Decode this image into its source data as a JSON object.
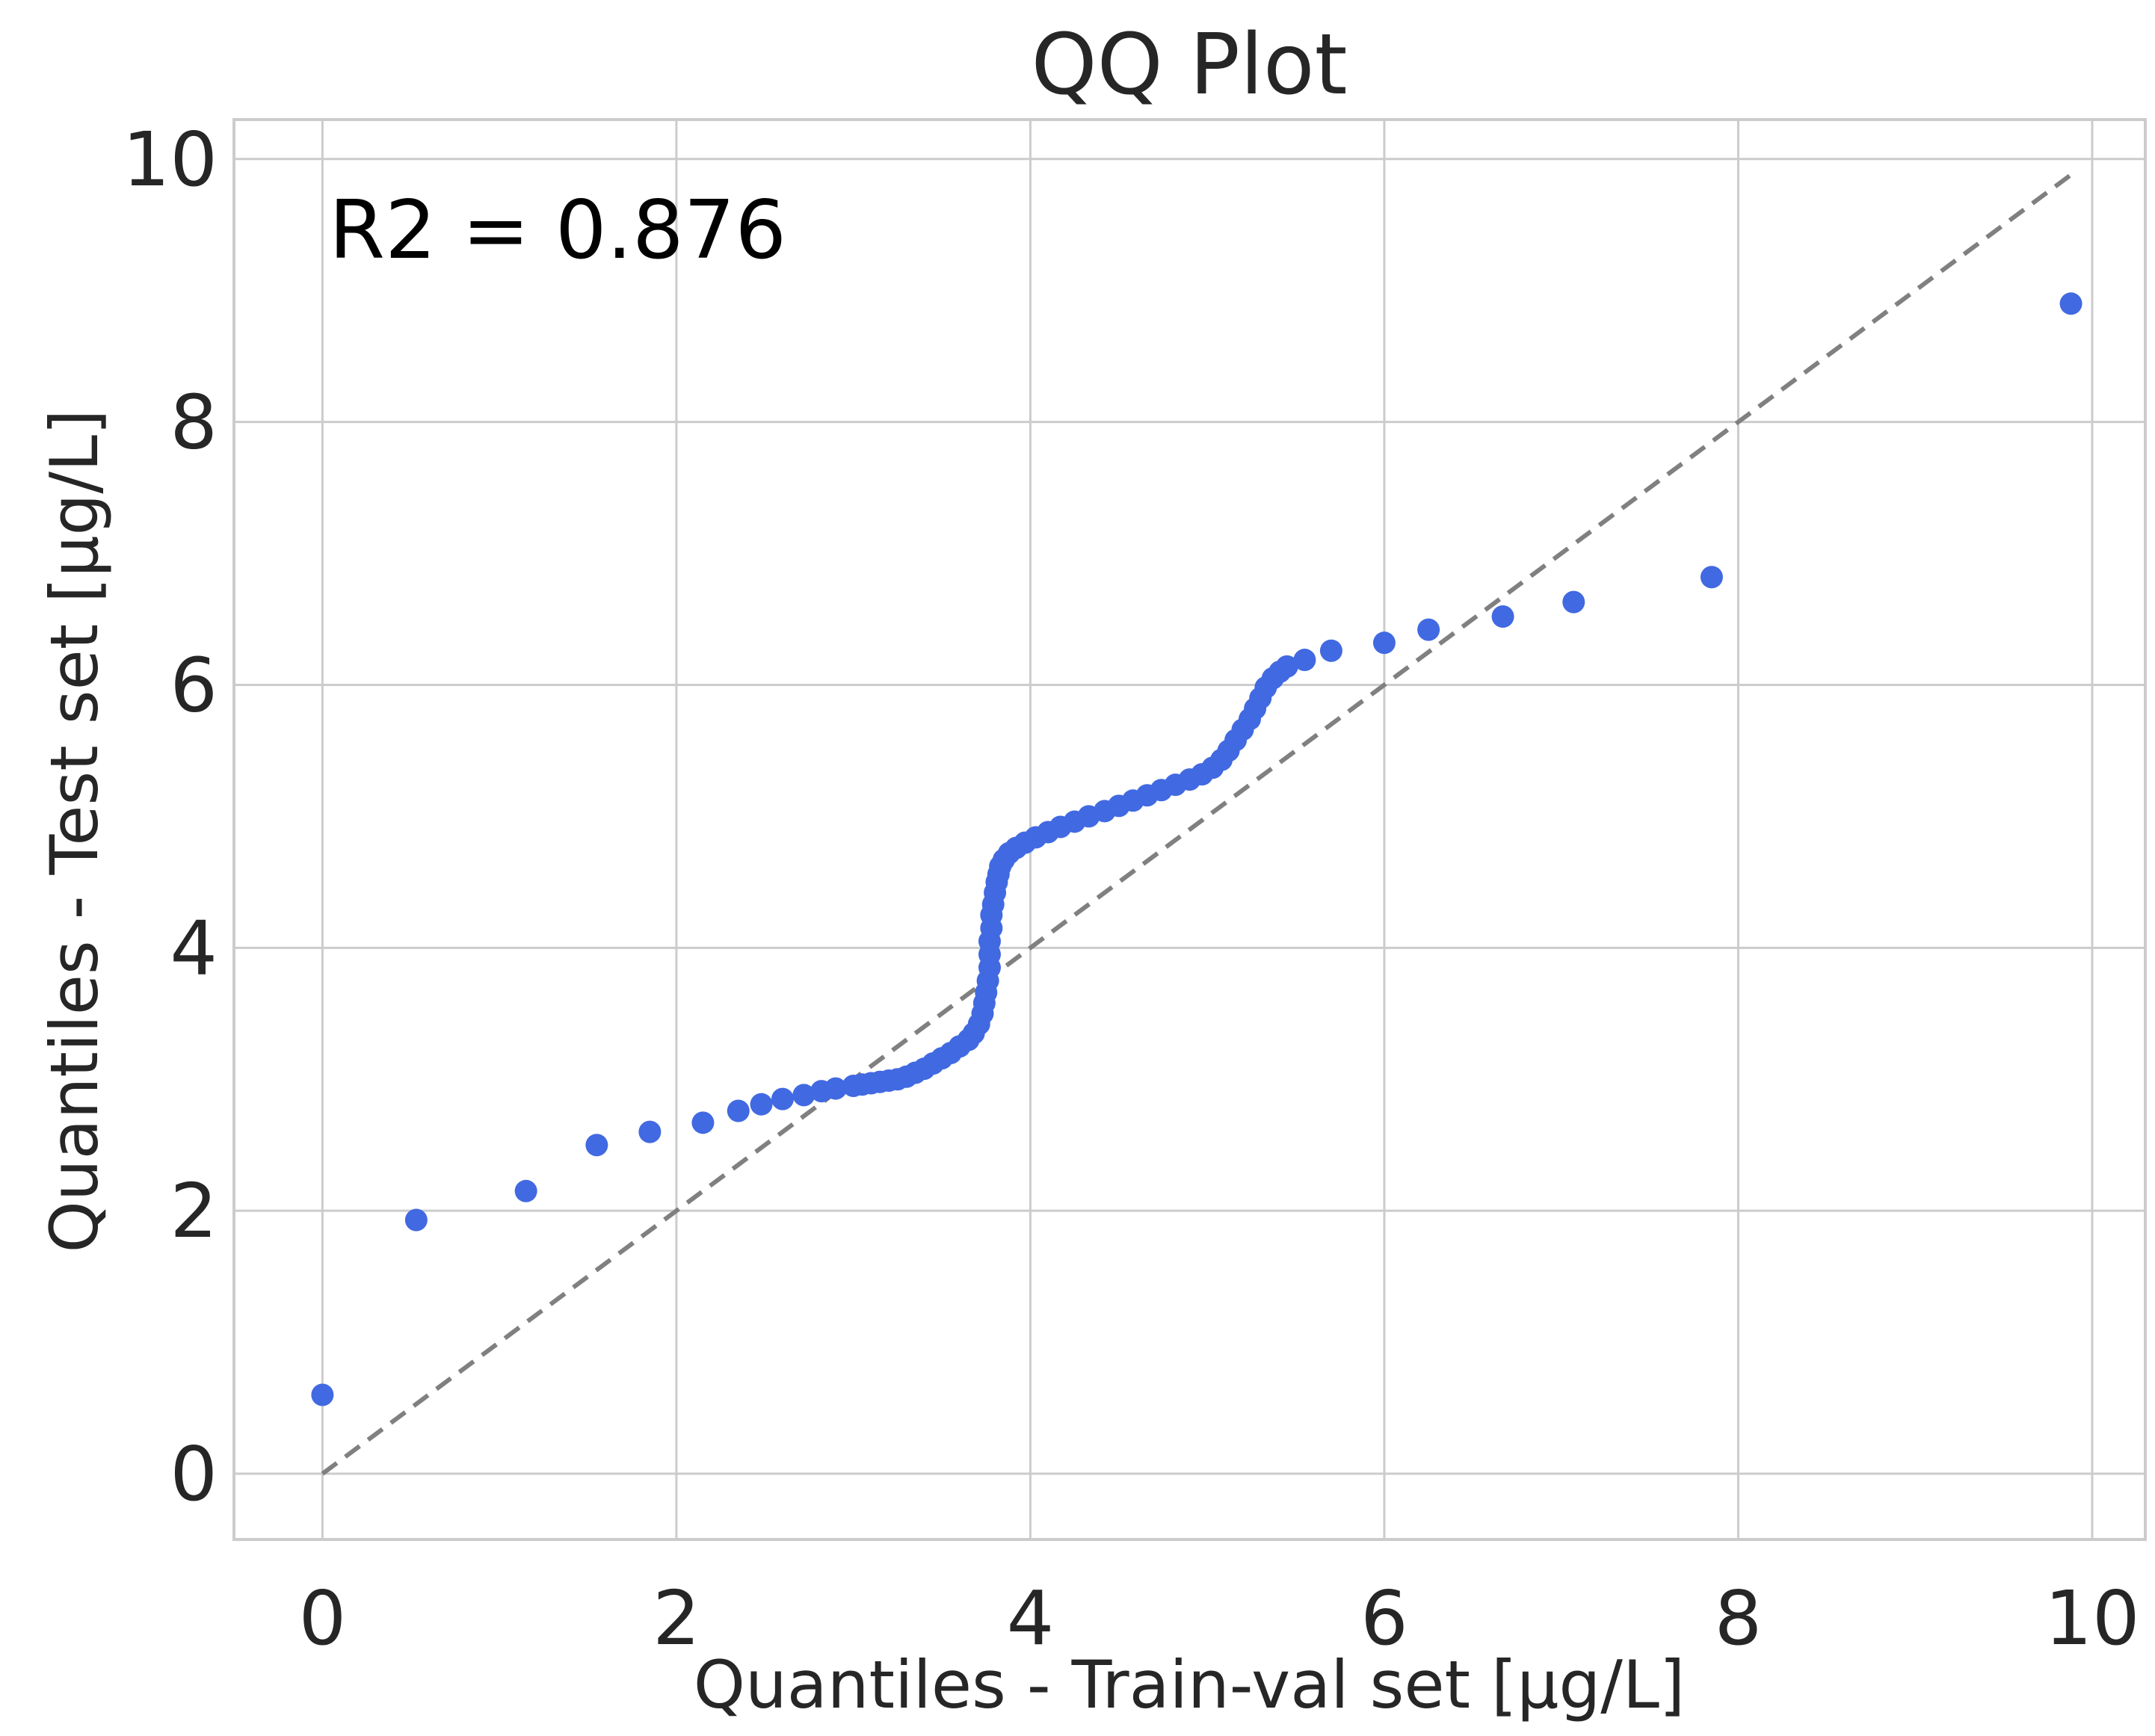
{
  "chart_data": {
    "type": "scatter",
    "title": "QQ Plot",
    "xlabel": "Quantiles - Train-val set [µg/L]",
    "ylabel": "Quantiles - Test set [µg/L]",
    "xlim": [
      -0.5,
      10.3
    ],
    "ylim": [
      -0.5,
      10.3
    ],
    "xticks": [
      0,
      2,
      4,
      6,
      8,
      10
    ],
    "yticks": [
      0,
      2,
      4,
      6,
      8,
      10
    ],
    "xtick_labels": [
      "0",
      "2",
      "4",
      "6",
      "8",
      "10"
    ],
    "ytick_labels": [
      "0",
      "2",
      "4",
      "6",
      "8",
      "10"
    ],
    "grid": true,
    "annotation": "R2 = 0.876",
    "reference_line": {
      "x": [
        0,
        9.88
      ],
      "y": [
        0,
        9.88
      ],
      "style": "dashed",
      "color": "#808080"
    },
    "series": [
      {
        "name": "quantiles",
        "color": "#4169E1",
        "points": [
          [
            0.0,
            0.6
          ],
          [
            0.53,
            1.93
          ],
          [
            1.15,
            2.15
          ],
          [
            1.55,
            2.5
          ],
          [
            1.85,
            2.6
          ],
          [
            2.15,
            2.67
          ],
          [
            2.35,
            2.76
          ],
          [
            2.48,
            2.81
          ],
          [
            2.6,
            2.85
          ],
          [
            2.72,
            2.88
          ],
          [
            2.82,
            2.91
          ],
          [
            2.9,
            2.93
          ],
          [
            3.0,
            2.95
          ],
          [
            3.05,
            2.96
          ],
          [
            3.1,
            2.97
          ],
          [
            3.15,
            2.98
          ],
          [
            3.2,
            2.99
          ],
          [
            3.25,
            3.0
          ],
          [
            3.3,
            3.02
          ],
          [
            3.35,
            3.05
          ],
          [
            3.4,
            3.08
          ],
          [
            3.45,
            3.12
          ],
          [
            3.5,
            3.16
          ],
          [
            3.55,
            3.2
          ],
          [
            3.6,
            3.25
          ],
          [
            3.65,
            3.3
          ],
          [
            3.68,
            3.35
          ],
          [
            3.71,
            3.42
          ],
          [
            3.73,
            3.5
          ],
          [
            3.74,
            3.58
          ],
          [
            3.75,
            3.66
          ],
          [
            3.76,
            3.75
          ],
          [
            3.77,
            3.85
          ],
          [
            3.77,
            3.95
          ],
          [
            3.77,
            4.05
          ],
          [
            3.78,
            4.15
          ],
          [
            3.78,
            4.25
          ],
          [
            3.79,
            4.33
          ],
          [
            3.8,
            4.42
          ],
          [
            3.81,
            4.5
          ],
          [
            3.82,
            4.56
          ],
          [
            3.83,
            4.62
          ],
          [
            3.85,
            4.67
          ],
          [
            3.88,
            4.72
          ],
          [
            3.92,
            4.76
          ],
          [
            3.97,
            4.8
          ],
          [
            4.03,
            4.84
          ],
          [
            4.1,
            4.88
          ],
          [
            4.17,
            4.92
          ],
          [
            4.25,
            4.96
          ],
          [
            4.33,
            5.0
          ],
          [
            4.42,
            5.04
          ],
          [
            4.5,
            5.08
          ],
          [
            4.58,
            5.12
          ],
          [
            4.66,
            5.16
          ],
          [
            4.74,
            5.2
          ],
          [
            4.82,
            5.24
          ],
          [
            4.9,
            5.28
          ],
          [
            4.97,
            5.32
          ],
          [
            5.03,
            5.37
          ],
          [
            5.08,
            5.43
          ],
          [
            5.12,
            5.5
          ],
          [
            5.16,
            5.58
          ],
          [
            5.2,
            5.66
          ],
          [
            5.24,
            5.74
          ],
          [
            5.27,
            5.82
          ],
          [
            5.3,
            5.9
          ],
          [
            5.33,
            5.98
          ],
          [
            5.37,
            6.05
          ],
          [
            5.41,
            6.1
          ],
          [
            5.45,
            6.14
          ],
          [
            5.55,
            6.19
          ],
          [
            5.7,
            6.26
          ],
          [
            6.0,
            6.32
          ],
          [
            6.25,
            6.42
          ],
          [
            6.67,
            6.52
          ],
          [
            7.07,
            6.63
          ],
          [
            7.85,
            6.82
          ],
          [
            9.88,
            8.9
          ]
        ]
      }
    ]
  }
}
